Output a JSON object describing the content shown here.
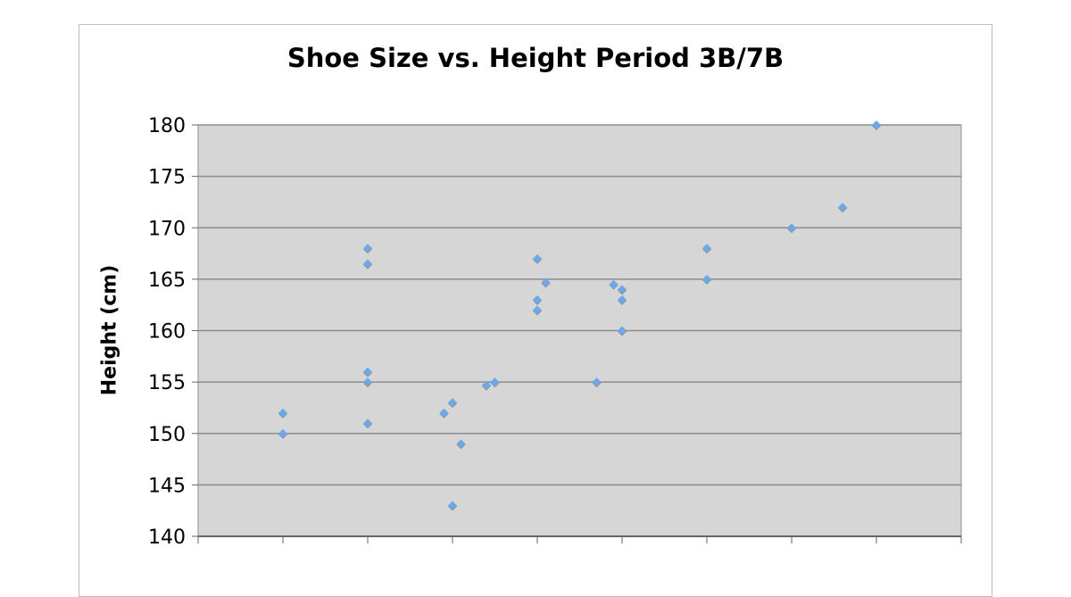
{
  "chart_data": {
    "type": "scatter",
    "title": "Shoe Size vs. Height Period 3B/7B",
    "xlabel": "",
    "ylabel": "Height (cm)",
    "ylim": [
      140,
      180
    ],
    "yticks": [
      "140",
      "145",
      "150",
      "155",
      "160",
      "165",
      "170",
      "175",
      "180"
    ],
    "xticks_count": 10,
    "grid": "horizontal",
    "legend": "none",
    "colors": {
      "marker": "#6fa8e8",
      "plot_bg": "#d6d6d6",
      "grid": "#8c8c8c"
    },
    "points": [
      {
        "x": 1,
        "y": 152
      },
      {
        "x": 1,
        "y": 150
      },
      {
        "x": 2,
        "y": 168
      },
      {
        "x": 2,
        "y": 166.5
      },
      {
        "x": 2,
        "y": 156
      },
      {
        "x": 2,
        "y": 155
      },
      {
        "x": 2,
        "y": 151
      },
      {
        "x": 2.9,
        "y": 152
      },
      {
        "x": 3,
        "y": 153
      },
      {
        "x": 3.1,
        "y": 149
      },
      {
        "x": 3,
        "y": 143
      },
      {
        "x": 3.4,
        "y": 154.7
      },
      {
        "x": 3.5,
        "y": 155
      },
      {
        "x": 4,
        "y": 167
      },
      {
        "x": 4.1,
        "y": 164.7
      },
      {
        "x": 4,
        "y": 163
      },
      {
        "x": 4,
        "y": 162
      },
      {
        "x": 4.7,
        "y": 155
      },
      {
        "x": 4.9,
        "y": 164.5
      },
      {
        "x": 5,
        "y": 164
      },
      {
        "x": 5,
        "y": 163
      },
      {
        "x": 5,
        "y": 160
      },
      {
        "x": 6,
        "y": 168
      },
      {
        "x": 6,
        "y": 165
      },
      {
        "x": 7,
        "y": 170
      },
      {
        "x": 7.6,
        "y": 172
      },
      {
        "x": 8,
        "y": 180
      }
    ]
  }
}
